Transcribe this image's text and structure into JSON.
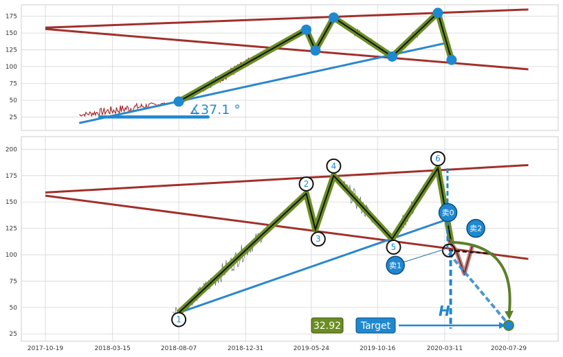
{
  "chart_data": [
    {
      "type": "line",
      "panel": "top",
      "xlim": [
        "2017-10-19",
        "2020-10-01"
      ],
      "ylim": [
        5,
        192
      ],
      "y_ticks": [
        25,
        50,
        75,
        100,
        125,
        150,
        175
      ],
      "grid": true,
      "pattern_points": [
        {
          "x": "2018-08-07",
          "y": 48
        },
        {
          "x": "2019-05-13",
          "y": 155
        },
        {
          "x": "2019-06-02",
          "y": 124
        },
        {
          "x": "2019-07-12",
          "y": 173
        },
        {
          "x": "2019-11-17",
          "y": 115
        },
        {
          "x": "2020-02-25",
          "y": 180
        },
        {
          "x": "2020-03-26",
          "y": 110
        }
      ],
      "trendlines": [
        {
          "role": "upper-resistance",
          "x": [
            "2017-10-19",
            "2020-09-10"
          ],
          "y": [
            158,
            185
          ]
        },
        {
          "role": "lower-resistance",
          "x": [
            "2017-10-19",
            "2020-09-10"
          ],
          "y": [
            156,
            96
          ]
        },
        {
          "role": "support",
          "x": [
            "2018-01-01",
            "2020-03-20"
          ],
          "y": [
            16,
            136
          ]
        }
      ],
      "angle_annotation": {
        "text": "∡37.1 °",
        "baseline": {
          "x": [
            "2018-02-15",
            "2018-10-10"
          ],
          "y": 25
        }
      }
    },
    {
      "type": "line",
      "panel": "bottom",
      "xlim": [
        "2017-10-19",
        "2020-10-01"
      ],
      "ylim": [
        18,
        212
      ],
      "x_ticks": [
        "2017-10-19",
        "2018-03-15",
        "2018-08-07",
        "2018-12-31",
        "2019-05-24",
        "2019-10-16",
        "2020-03-11",
        "2020-07-29"
      ],
      "y_ticks": [
        25,
        50,
        75,
        100,
        125,
        150,
        175,
        200
      ],
      "grid": true,
      "pattern_points": [
        {
          "label": "1",
          "x": "2018-08-07",
          "y": 45
        },
        {
          "label": "2",
          "x": "2019-05-13",
          "y": 158
        },
        {
          "label": "3",
          "x": "2019-06-02",
          "y": 124
        },
        {
          "label": "4",
          "x": "2019-07-12",
          "y": 175
        },
        {
          "label": "5",
          "x": "2019-11-17",
          "y": 115
        },
        {
          "label": "6",
          "x": "2020-02-25",
          "y": 182
        },
        {
          "x": "2020-03-26",
          "y": 110
        }
      ],
      "trendlines": [
        {
          "role": "upper-resistance",
          "x": [
            "2017-10-19",
            "2020-09-10"
          ],
          "y": [
            159,
            185
          ]
        },
        {
          "role": "lower-resistance",
          "x": [
            "2017-10-19",
            "2020-09-10"
          ],
          "y": [
            156,
            96
          ]
        },
        {
          "role": "support",
          "x": [
            "2018-08-07",
            "2020-03-20"
          ],
          "y": [
            45,
            134
          ]
        }
      ],
      "projection": {
        "x": [
          "2020-03-20",
          "2020-04-05",
          "2020-04-23",
          "2020-05-10"
        ],
        "y": [
          114,
          104,
          82,
          108
        ]
      },
      "breakout_point": {
        "x": "2020-03-20",
        "y": 104
      },
      "target_point": {
        "x": "2020-07-29",
        "y": 33
      },
      "sell_markers": [
        {
          "label": "卖0",
          "x": "2020-03-18",
          "y": 140
        },
        {
          "label": "卖1",
          "x": "2019-11-24",
          "y": 90
        },
        {
          "label": "卖2",
          "x": "2020-05-18",
          "y": 125
        }
      ],
      "height_label": "H",
      "target_label": "Target",
      "target_value": "32.92"
    }
  ]
}
